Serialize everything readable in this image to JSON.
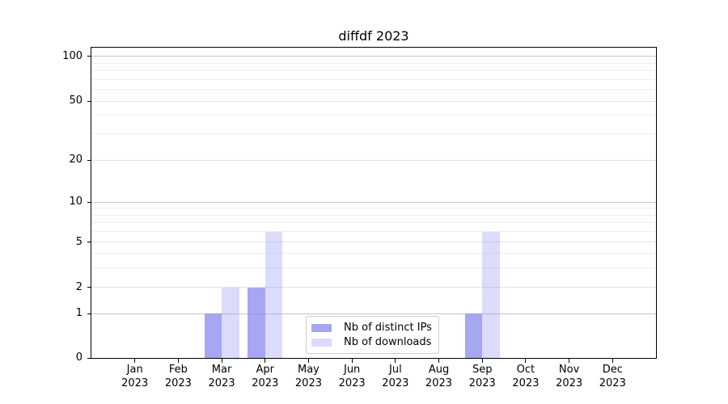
{
  "chart_data": {
    "type": "bar",
    "title": "diffdf 2023",
    "categories": [
      "Jan 2023",
      "Feb 2023",
      "Mar 2023",
      "Apr 2023",
      "May 2023",
      "Jun 2023",
      "Jul 2023",
      "Aug 2023",
      "Sep 2023",
      "Oct 2023",
      "Nov 2023",
      "Dec 2023"
    ],
    "x_tick_line1": [
      "Jan",
      "Feb",
      "Mar",
      "Apr",
      "May",
      "Jun",
      "Jul",
      "Aug",
      "Sep",
      "Oct",
      "Nov",
      "Dec"
    ],
    "x_tick_line2": "2023",
    "series": [
      {
        "key": "distinct-ips",
        "name": "Nb of distinct IPs",
        "color": "rgba(136,136,238,0.75)",
        "values": [
          0,
          0,
          1,
          2,
          0,
          0,
          0,
          0,
          1,
          0,
          0,
          0
        ]
      },
      {
        "key": "downloads",
        "name": "Nb of downloads",
        "color": "rgba(136,136,238,0.3)",
        "values": [
          0,
          0,
          2,
          6,
          0,
          0,
          0,
          0,
          6,
          0,
          0,
          0
        ]
      }
    ],
    "y_axis": {
      "scale": "asinh-log",
      "major_ticks": [
        0,
        1,
        2,
        5,
        10,
        20,
        50,
        100
      ],
      "minor_gridline_values": [
        3,
        4,
        6,
        7,
        8,
        9,
        30,
        40,
        60,
        70,
        80,
        90
      ],
      "tick_fractions": [
        [
          0,
          0
        ],
        [
          1,
          0.1432
        ],
        [
          2,
          0.2266
        ],
        [
          5,
          0.3724
        ],
        [
          10,
          0.5026
        ],
        [
          20,
          0.638
        ],
        [
          50,
          0.8281
        ],
        [
          100,
          0.9714
        ]
      ],
      "grid": true
    },
    "x_axis": {
      "grid": false
    },
    "legend": {
      "position": "lower center inside",
      "entries": [
        "Nb of distinct IPs",
        "Nb of downloads"
      ]
    },
    "colors": {
      "bar_base": "#8888ee",
      "grid_major_power": "#c6c6c6",
      "grid_major_other": "#e3e3e3",
      "grid_minor": "#efefef",
      "spine": "#000000"
    }
  }
}
